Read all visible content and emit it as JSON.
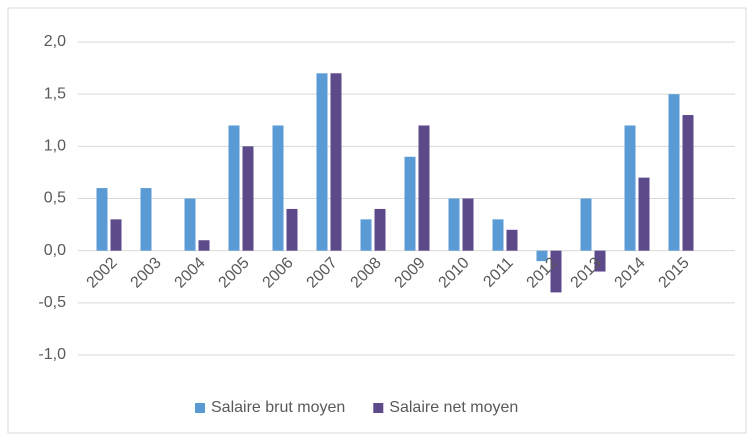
{
  "chart_data": {
    "type": "bar",
    "categories": [
      "2002",
      "2003",
      "2004",
      "2005",
      "2006",
      "2007",
      "2008",
      "2009",
      "2010",
      "2011",
      "2012",
      "2013",
      "2014",
      "2015"
    ],
    "series": [
      {
        "name": "Salaire brut moyen",
        "color": "#5b9bd5",
        "values": [
          0.6,
          0.6,
          0.5,
          1.2,
          1.2,
          1.7,
          0.3,
          0.9,
          0.5,
          0.3,
          -0.1,
          0.5,
          1.2,
          1.5
        ]
      },
      {
        "name": "Salaire net moyen",
        "color": "#5d4a8a",
        "values": [
          0.3,
          0,
          0.1,
          1.0,
          0.4,
          1.7,
          0.4,
          1.2,
          0.5,
          0.2,
          -0.4,
          -0.2,
          0.7,
          1.3
        ]
      }
    ],
    "ylim": [
      -1,
      2
    ],
    "yticks": [
      {
        "value": -1,
        "label": "-1,0"
      },
      {
        "value": -0.5,
        "label": "-0,5"
      },
      {
        "value": 0,
        "label": "0,0"
      },
      {
        "value": 0.5,
        "label": "0,5"
      },
      {
        "value": 1,
        "label": "1,0"
      },
      {
        "value": 1.5,
        "label": "1,5"
      },
      {
        "value": 2,
        "label": "2,0"
      }
    ],
    "grid": true,
    "legend": "bottom"
  }
}
